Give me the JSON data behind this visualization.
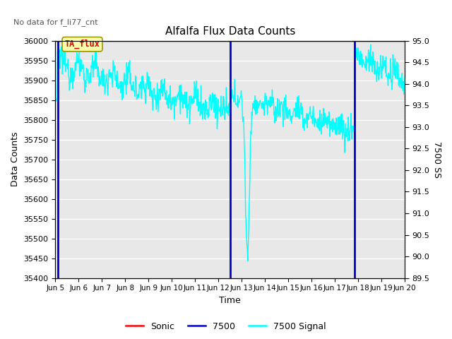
{
  "title": "Alfalfa Flux Data Counts",
  "top_left_text": "No data for f_li77_cnt",
  "ylabel_left": "Data Counts",
  "ylabel_right": "7500 SS",
  "xlabel": "Time",
  "ylim_left": [
    35400,
    36000
  ],
  "ylim_right": [
    89.5,
    95.0
  ],
  "annotation_text": "TA_flux",
  "annotation_bg_color": "#ffffaa",
  "annotation_text_color": "#cc0000",
  "bg_color": "#e8e8e8",
  "blue_vlines": [
    5.1,
    12.5,
    17.85
  ],
  "blue_hline_y": 36000,
  "legend_entries": [
    "Sonic",
    "7500",
    "7500 Signal"
  ],
  "legend_colors": [
    "#cc0000",
    "#0000cc",
    "#00cccc"
  ],
  "xlim": [
    5,
    20
  ],
  "xticks": [
    5,
    6,
    7,
    8,
    9,
    10,
    11,
    12,
    13,
    14,
    15,
    16,
    17,
    18,
    19,
    20
  ],
  "ytick_spacing": 50,
  "right_ytick_spacing": 0.5,
  "figsize": [
    6.4,
    4.8
  ],
  "dpi": 100
}
